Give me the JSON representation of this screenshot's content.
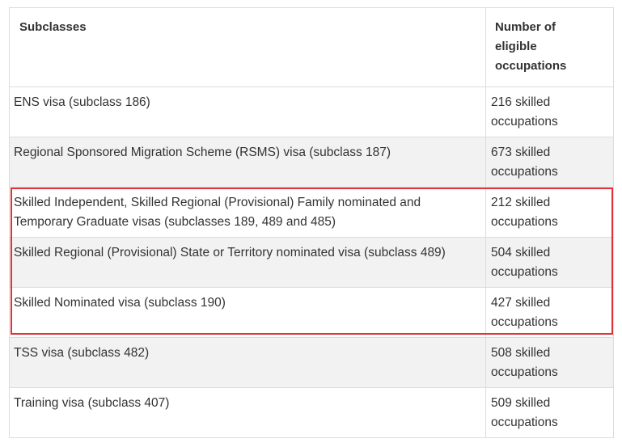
{
  "table": {
    "headers": {
      "subclasses": "Subclasses",
      "count_line1": "Number of",
      "count_line2": "eligible",
      "count_line3": "occupations"
    },
    "rows": [
      {
        "name": "ENS visa (subclass 186)",
        "count_line1": "216 skilled",
        "count_line2": "occupations"
      },
      {
        "name": "Regional Sponsored Migration Scheme (RSMS) visa (subclass 187)",
        "count_line1": "673 skilled",
        "count_line2": "occupations"
      },
      {
        "name": "Skilled Independent, Skilled Regional (Provisional) Family nominated and Temporary Graduate visas (subclasses 189, 489 and 485)",
        "count_line1": "212 skilled",
        "count_line2": "occupations"
      },
      {
        "name": "Skilled Regional (Provisional) State or Territory nominated visa (subclass 489)",
        "count_line1": "504 skilled",
        "count_line2": "occupations"
      },
      {
        "name": "Skilled Nominated visa (subclass 190)",
        "count_line1": "427 skilled",
        "count_line2": "occupations"
      },
      {
        "name": "TSS visa (subclass 482)",
        "count_line1": "508 skilled",
        "count_line2": "occupations"
      },
      {
        "name": "Training visa (subclass 407)",
        "count_line1": "509 skilled",
        "count_line2": "occupations"
      }
    ]
  },
  "highlight": {
    "color": "#e0323c"
  }
}
